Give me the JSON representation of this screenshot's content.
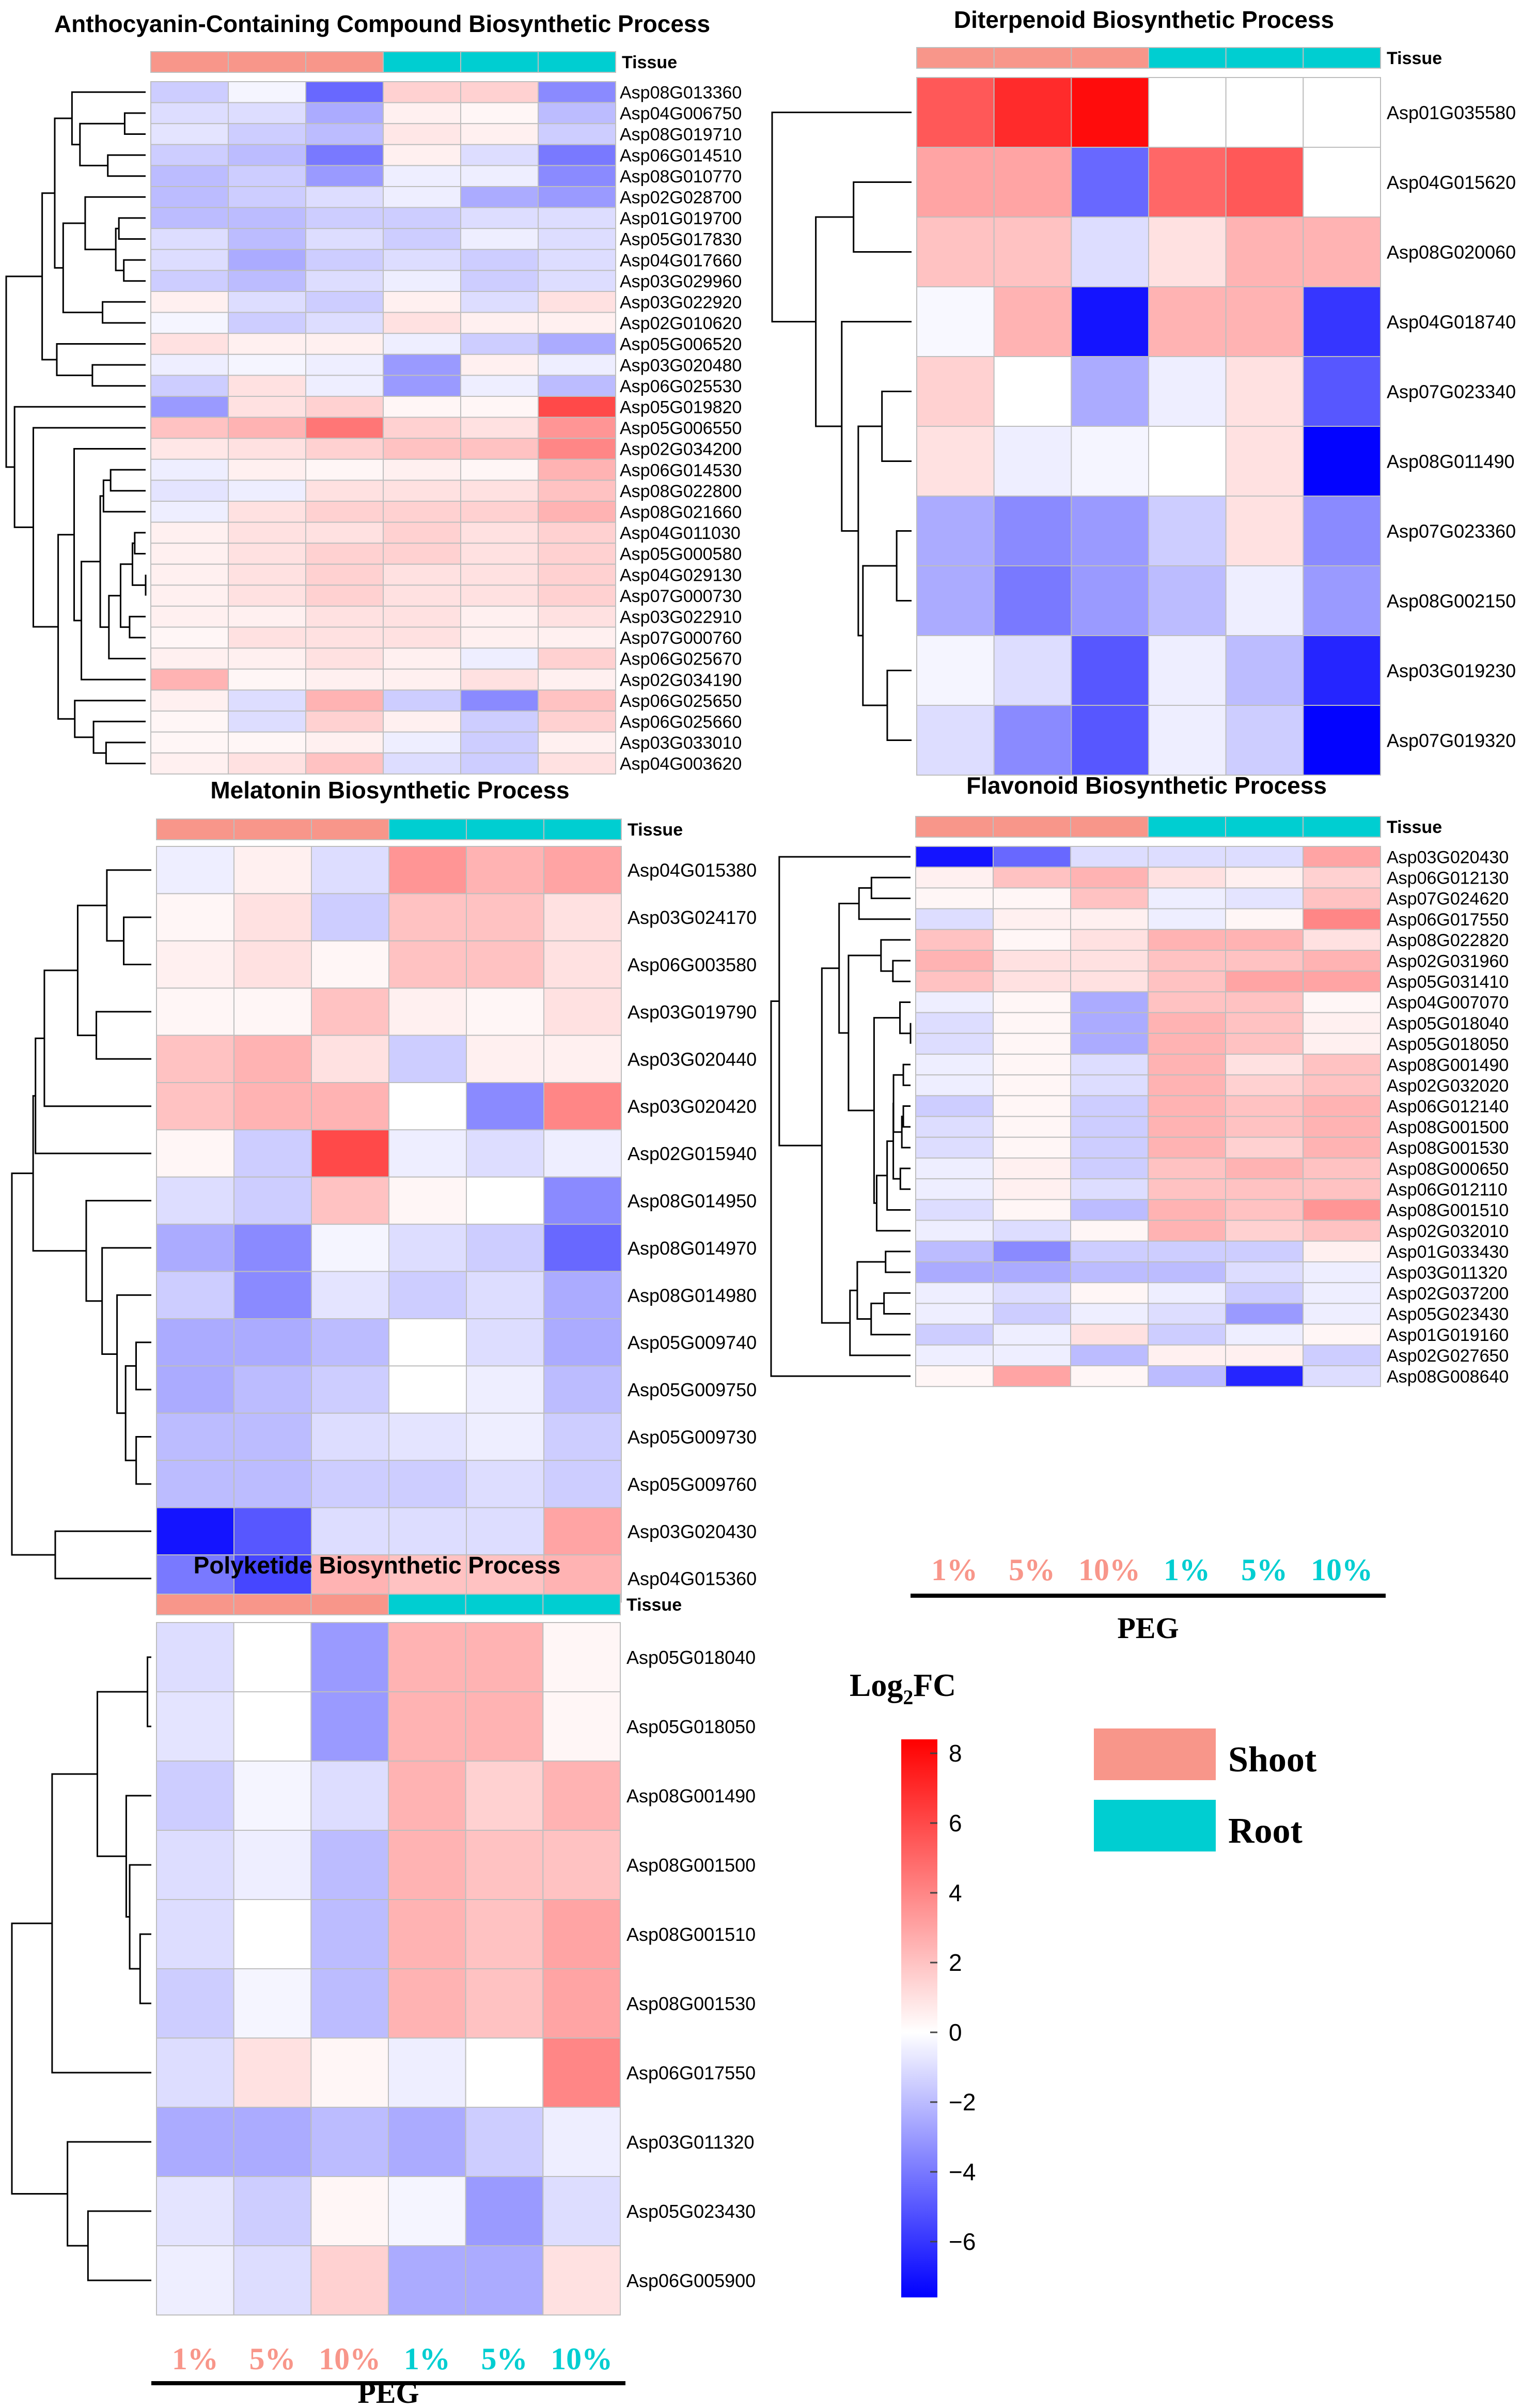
{
  "colors": {
    "shoot": "#F8968A",
    "root": "#00CED1",
    "high": "#FF0000",
    "mid": "#FFFFFF",
    "low": "#0000FF",
    "grid": "#BEBEBE"
  },
  "common": {
    "tissue_label": "Tissue",
    "peg_label": "PEG",
    "conditions": [
      "1%",
      "5%",
      "10%",
      "1%",
      "5%",
      "10%"
    ],
    "condition_tissue": [
      "shoot",
      "shoot",
      "shoot",
      "root",
      "root",
      "root"
    ]
  },
  "legend": {
    "title_main": "Log",
    "title_sub": "2",
    "title_tail": "FC",
    "scale_min": -7.6,
    "scale_max": 8.4,
    "ticks": [
      8,
      6,
      4,
      2,
      0,
      -2,
      -4,
      -6
    ],
    "tick_labels": [
      "8",
      "6",
      "4",
      "2",
      "0",
      "−2",
      "−4",
      "−6"
    ],
    "shoot_label": "Shoot",
    "root_label": "Root"
  },
  "chart_data": [
    {
      "type": "heatmap",
      "title": "Anthocyanin-Containing Compound Biosynthetic Process",
      "columns": [
        "Shoot 1%",
        "Shoot 5%",
        "Shoot 10%",
        "Root 1%",
        "Root 5%",
        "Root 10%"
      ],
      "rows": [
        "Asp08G013360",
        "Asp04G006750",
        "Asp08G019710",
        "Asp02G028700",
        "Asp06G014510",
        "Asp08G010770",
        "Asp05G019820",
        "Asp05G006550",
        "Asp02G034200",
        "Asp06G014530",
        "Asp08G022800",
        "Asp08G021660",
        "Asp04G011030",
        "Asp05G000580",
        "Asp04G029130",
        "Asp07G000730",
        "Asp06G025650",
        "Asp06G025660",
        "Asp02G034190",
        "Asp03G022920",
        "Asp03G033010",
        "Asp04G003620",
        "Asp06G025670",
        "Asp03G022910",
        "Asp07G000760",
        "Asp01G019700",
        "Asp02G010620",
        "Asp04G017660",
        "Asp03G029960",
        "Asp05G017830",
        "Asp05G006520",
        "Asp03G020480",
        "Asp06G025530"
      ],
      "values": [
        [
          -1.5,
          -0.3,
          -4.5,
          1.5,
          1.5,
          -3.5
        ],
        [
          -1.0,
          -1.0,
          -2.5,
          0.5,
          0.3,
          -2.0
        ],
        [
          -0.8,
          -1.5,
          -2.0,
          0.8,
          0.5,
          -1.5
        ],
        [
          -2.0,
          -1.5,
          -1.0,
          -0.5,
          -2.5,
          -3.0
        ],
        [
          -1.5,
          -2.0,
          -4.0,
          0.5,
          -1.0,
          -4.0
        ],
        [
          -2.0,
          -1.5,
          -3.0,
          -0.5,
          -0.5,
          -3.5
        ],
        [
          -3.0,
          1.0,
          1.5,
          0.3,
          0.3,
          6.0
        ],
        [
          2.0,
          2.5,
          4.5,
          1.5,
          1.0,
          3.5
        ],
        [
          0.8,
          1.0,
          1.5,
          2.0,
          2.0,
          4.0
        ],
        [
          -0.5,
          0.5,
          0.3,
          0.5,
          0.3,
          2.5
        ],
        [
          -0.8,
          -0.5,
          1.0,
          1.0,
          1.0,
          2.0
        ],
        [
          -0.5,
          1.0,
          1.5,
          1.5,
          1.5,
          2.5
        ],
        [
          0.5,
          1.0,
          1.0,
          1.5,
          1.0,
          1.5
        ],
        [
          0.5,
          1.0,
          1.5,
          1.5,
          1.0,
          1.5
        ],
        [
          0.5,
          1.0,
          1.5,
          1.0,
          1.0,
          1.5
        ],
        [
          0.5,
          1.0,
          1.5,
          1.0,
          1.0,
          1.5
        ],
        [
          0.5,
          -1.0,
          2.5,
          -1.5,
          -3.5,
          2.0
        ],
        [
          0.3,
          -1.0,
          1.5,
          0.5,
          -1.5,
          1.5
        ],
        [
          2.5,
          0.3,
          0.5,
          0.5,
          1.0,
          0.5
        ],
        [
          0.5,
          -1.0,
          -1.5,
          0.5,
          -1.0,
          1.0
        ],
        [
          0.3,
          0.3,
          0.5,
          -0.5,
          -1.5,
          0.5
        ],
        [
          0.5,
          1.0,
          2.0,
          -1.0,
          -1.5,
          1.0
        ],
        [
          0.5,
          0.5,
          1.0,
          0.5,
          -0.5,
          1.5
        ],
        [
          0.5,
          0.5,
          1.0,
          1.0,
          0.5,
          1.0
        ],
        [
          0.3,
          1.0,
          1.0,
          1.0,
          0.5,
          0.5
        ],
        [
          -2.0,
          -2.0,
          -1.5,
          -1.5,
          -1.0,
          -1.0
        ],
        [
          -0.3,
          -1.5,
          -1.0,
          1.0,
          0.5,
          0.5
        ],
        [
          -1.0,
          -2.5,
          -1.5,
          -1.0,
          -1.5,
          -1.0
        ],
        [
          -1.5,
          -2.0,
          -1.0,
          -0.5,
          -1.5,
          -1.0
        ],
        [
          -1.0,
          -2.0,
          -1.0,
          -1.5,
          -0.5,
          -1.0
        ],
        [
          1.0,
          0.5,
          0.5,
          -0.5,
          -1.5,
          -2.5
        ],
        [
          -0.5,
          -0.3,
          -0.5,
          -3.0,
          0.5,
          -0.5
        ],
        [
          -1.5,
          1.0,
          -0.5,
          -3.0,
          -0.5,
          -2.0
        ]
      ],
      "xlabel": "",
      "ylabel": ""
    },
    {
      "type": "heatmap",
      "title": "Diterpenoid Biosynthetic Process",
      "columns": [
        "Shoot 1%",
        "Shoot 5%",
        "Shoot 10%",
        "Root 1%",
        "Root 5%",
        "Root 10%"
      ],
      "rows": [
        "Asp01G035580",
        "Asp04G015620",
        "Asp08G020060",
        "Asp04G018740",
        "Asp07G023340",
        "Asp08G011490",
        "Asp07G023360",
        "Asp08G002150",
        "Asp03G019230",
        "Asp07G019320"
      ],
      "values": [
        [
          5.5,
          7.0,
          8.0,
          0.0,
          0.0,
          0.0
        ],
        [
          3.0,
          3.0,
          -4.5,
          5.0,
          5.5,
          0.0
        ],
        [
          2.0,
          2.0,
          -1.0,
          1.0,
          2.5,
          2.5
        ],
        [
          -0.2,
          2.5,
          -7.0,
          2.5,
          2.5,
          -6.0
        ],
        [
          1.5,
          0.0,
          -2.5,
          -0.5,
          1.0,
          -5.0
        ],
        [
          1.0,
          -0.5,
          -0.3,
          0.0,
          1.0,
          -7.5
        ],
        [
          -2.5,
          -3.5,
          -3.0,
          -1.5,
          1.0,
          -3.5
        ],
        [
          -2.5,
          -4.0,
          -3.0,
          -2.0,
          -0.5,
          -3.0
        ],
        [
          -0.3,
          -1.0,
          -5.0,
          -0.5,
          -2.0,
          -6.5
        ],
        [
          -1.0,
          -3.5,
          -5.0,
          -0.5,
          -1.5,
          -7.5
        ]
      ],
      "xlabel": "",
      "ylabel": ""
    },
    {
      "type": "heatmap",
      "title": "Melatonin Biosynthetic Process",
      "columns": [
        "Shoot 1%",
        "Shoot 5%",
        "Shoot 10%",
        "Root 1%",
        "Root 5%",
        "Root 10%"
      ],
      "rows": [
        "Asp04G015380",
        "Asp03G024170",
        "Asp06G003580",
        "Asp02G015940",
        "Asp03G020420",
        "Asp03G019790",
        "Asp03G020440",
        "Asp08G014950",
        "Asp08G014970",
        "Asp08G014980",
        "Asp05G009740",
        "Asp05G009750",
        "Asp05G009730",
        "Asp05G009760",
        "Asp03G020430",
        "Asp04G015360"
      ],
      "values": [
        [
          -0.5,
          0.5,
          -1.0,
          3.5,
          2.5,
          3.0
        ],
        [
          0.3,
          1.0,
          -1.5,
          2.0,
          2.0,
          1.0
        ],
        [
          0.5,
          1.0,
          0.3,
          2.0,
          2.0,
          1.0
        ],
        [
          0.3,
          -1.5,
          6.0,
          -0.5,
          -1.0,
          -0.5
        ],
        [
          2.0,
          2.5,
          2.5,
          0.0,
          -3.5,
          4.0
        ],
        [
          0.3,
          0.3,
          2.0,
          0.5,
          0.3,
          1.0
        ],
        [
          2.0,
          2.5,
          1.0,
          -1.5,
          0.5,
          0.5
        ],
        [
          -1.0,
          -1.5,
          2.0,
          0.3,
          0.0,
          -3.5
        ],
        [
          -2.5,
          -3.5,
          -0.3,
          -1.0,
          -1.5,
          -4.5
        ],
        [
          -1.5,
          -3.5,
          -0.8,
          -1.5,
          -1.0,
          -2.5
        ],
        [
          -2.5,
          -2.5,
          -2.0,
          0.0,
          -1.0,
          -2.5
        ],
        [
          -2.5,
          -2.0,
          -1.5,
          0.0,
          -0.5,
          -2.0
        ],
        [
          -2.0,
          -2.0,
          -1.0,
          -0.8,
          -0.5,
          -1.5
        ],
        [
          -2.0,
          -2.0,
          -1.5,
          -1.5,
          -1.0,
          -1.5
        ],
        [
          -7.0,
          -5.0,
          -1.0,
          -1.0,
          -1.0,
          3.0
        ],
        [
          -4.0,
          -5.5,
          2.5,
          2.0,
          2.0,
          2.5
        ]
      ],
      "xlabel": "",
      "ylabel": ""
    },
    {
      "type": "heatmap",
      "title": "Flavonoid Biosynthetic Process",
      "columns": [
        "Shoot 1%",
        "Shoot 5%",
        "Shoot 10%",
        "Root 1%",
        "Root 5%",
        "Root 10%"
      ],
      "rows": [
        "Asp03G020430",
        "Asp06G012130",
        "Asp06G017550",
        "Asp07G024620",
        "Asp08G022820",
        "Asp04G007070",
        "Asp05G018040",
        "Asp05G018050",
        "Asp02G031960",
        "Asp05G031410",
        "Asp08G001490",
        "Asp02G032010",
        "Asp02G032020",
        "Asp08G000650",
        "Asp06G012110",
        "Asp06G012140",
        "Asp08G001500",
        "Asp08G001510",
        "Asp08G001530",
        "Asp08G008640",
        "Asp01G033430",
        "Asp03G011320",
        "Asp02G027650",
        "Asp02G037200",
        "Asp01G019160",
        "Asp05G023430"
      ],
      "values": [
        [
          -7.0,
          -4.5,
          -1.0,
          -1.0,
          -1.0,
          3.0
        ],
        [
          0.5,
          2.0,
          2.5,
          1.0,
          0.5,
          1.5
        ],
        [
          -1.0,
          0.5,
          0.5,
          -0.5,
          0.3,
          4.0
        ],
        [
          0.3,
          0.3,
          2.0,
          -0.5,
          -0.8,
          2.0
        ],
        [
          2.0,
          0.3,
          1.0,
          2.5,
          2.5,
          1.0
        ],
        [
          -0.5,
          0.3,
          -2.5,
          2.0,
          2.0,
          0.3
        ],
        [
          -1.0,
          0.3,
          -2.5,
          2.5,
          2.0,
          0.5
        ],
        [
          -1.0,
          0.3,
          -2.5,
          2.5,
          2.0,
          0.5
        ],
        [
          2.5,
          1.0,
          1.0,
          2.0,
          2.0,
          2.5
        ],
        [
          2.0,
          1.0,
          1.0,
          2.0,
          3.0,
          3.0
        ],
        [
          -0.5,
          0.3,
          -1.0,
          2.5,
          1.0,
          2.0
        ],
        [
          -0.5,
          -1.0,
          0.3,
          2.5,
          1.5,
          2.0
        ],
        [
          -0.5,
          0.3,
          -1.0,
          2.5,
          1.5,
          2.0
        ],
        [
          -0.5,
          0.5,
          -1.5,
          2.0,
          2.5,
          2.0
        ],
        [
          -0.5,
          0.5,
          -1.0,
          2.0,
          2.0,
          2.0
        ],
        [
          -1.5,
          0.3,
          -1.5,
          2.5,
          2.0,
          2.5
        ],
        [
          -1.0,
          0.3,
          -1.5,
          2.5,
          2.0,
          2.5
        ],
        [
          -1.0,
          0.3,
          -2.0,
          2.5,
          2.0,
          3.5
        ],
        [
          -1.0,
          0.3,
          -1.5,
          2.5,
          1.5,
          2.5
        ],
        [
          0.3,
          3.0,
          0.3,
          -2.0,
          -6.5,
          -1.0
        ],
        [
          -2.0,
          -3.5,
          -1.5,
          -1.5,
          -1.5,
          0.5
        ],
        [
          -2.5,
          -2.5,
          -2.0,
          -2.0,
          -1.0,
          -0.5
        ],
        [
          -0.5,
          -0.5,
          -2.0,
          0.5,
          0.5,
          -1.5
        ],
        [
          -0.5,
          -1.0,
          0.3,
          -0.5,
          -1.5,
          -0.5
        ],
        [
          -1.5,
          -0.5,
          1.0,
          -1.5,
          -0.5,
          0.3
        ],
        [
          -0.5,
          -1.5,
          -0.5,
          -1.0,
          -3.0,
          -0.5
        ]
      ],
      "xlabel": "PEG",
      "ylabel": ""
    },
    {
      "type": "heatmap",
      "title": "Polyketide Biosynthetic Process",
      "columns": [
        "Shoot 1%",
        "Shoot 5%",
        "Shoot 10%",
        "Root 1%",
        "Root 5%",
        "Root 10%"
      ],
      "rows": [
        "Asp05G018040",
        "Asp05G018050",
        "Asp08G001490",
        "Asp08G001500",
        "Asp08G001510",
        "Asp08G001530",
        "Asp06G017550",
        "Asp03G011320",
        "Asp05G023430",
        "Asp06G005900"
      ],
      "values": [
        [
          -1.0,
          0.0,
          -3.0,
          2.5,
          2.5,
          0.3
        ],
        [
          -0.8,
          0.0,
          -3.0,
          2.5,
          2.5,
          0.3
        ],
        [
          -1.5,
          -0.3,
          -1.0,
          2.5,
          1.5,
          2.5
        ],
        [
          -1.0,
          -0.5,
          -2.0,
          2.5,
          2.0,
          2.0
        ],
        [
          -1.0,
          0.0,
          -2.0,
          2.5,
          2.0,
          3.0
        ],
        [
          -1.5,
          -0.3,
          -2.0,
          2.5,
          2.0,
          3.0
        ],
        [
          -1.0,
          1.0,
          0.3,
          -0.5,
          0.0,
          4.0
        ],
        [
          -2.5,
          -2.5,
          -2.0,
          -2.5,
          -1.5,
          -0.5
        ],
        [
          -0.8,
          -1.5,
          0.3,
          -0.3,
          -3.0,
          -1.0
        ],
        [
          -0.5,
          -1.0,
          1.5,
          -2.5,
          -2.5,
          1.0
        ]
      ],
      "xlabel": "PEG",
      "ylabel": ""
    }
  ]
}
